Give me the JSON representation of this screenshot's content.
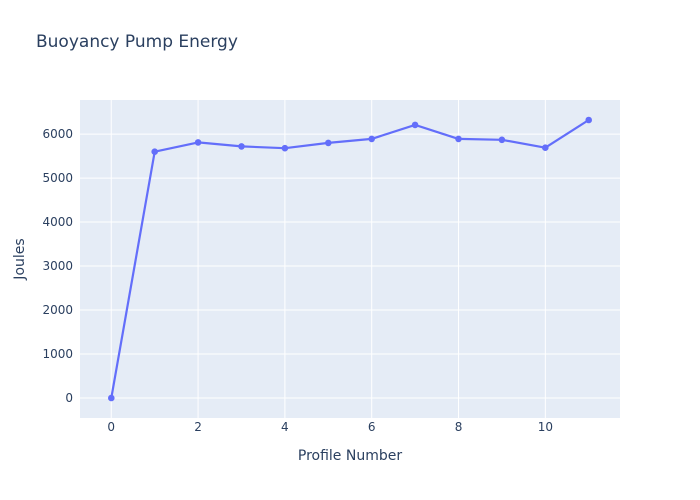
{
  "chart_data": {
    "type": "line",
    "title": "Buoyancy Pump Energy",
    "xlabel": "Profile Number",
    "ylabel": "Joules",
    "x": [
      0,
      1,
      2,
      3,
      4,
      5,
      6,
      7,
      8,
      9,
      10,
      11
    ],
    "y": [
      0,
      5600,
      5810,
      5720,
      5680,
      5800,
      5890,
      6210,
      5890,
      5870,
      5690,
      6320
    ],
    "xlim": [
      -0.72,
      11.72
    ],
    "ylim": [
      -455,
      6775
    ],
    "xticks": [
      0,
      2,
      4,
      6,
      8,
      10
    ],
    "yticks": [
      0,
      1000,
      2000,
      3000,
      4000,
      5000,
      6000
    ],
    "grid": true,
    "legend": false,
    "colors": {
      "line": "#636efa",
      "marker": "#636efa",
      "plot_bg": "#e5ecf6",
      "paper_bg": "#ffffff",
      "grid": "#ffffff",
      "font": "#2a3f5f"
    }
  }
}
